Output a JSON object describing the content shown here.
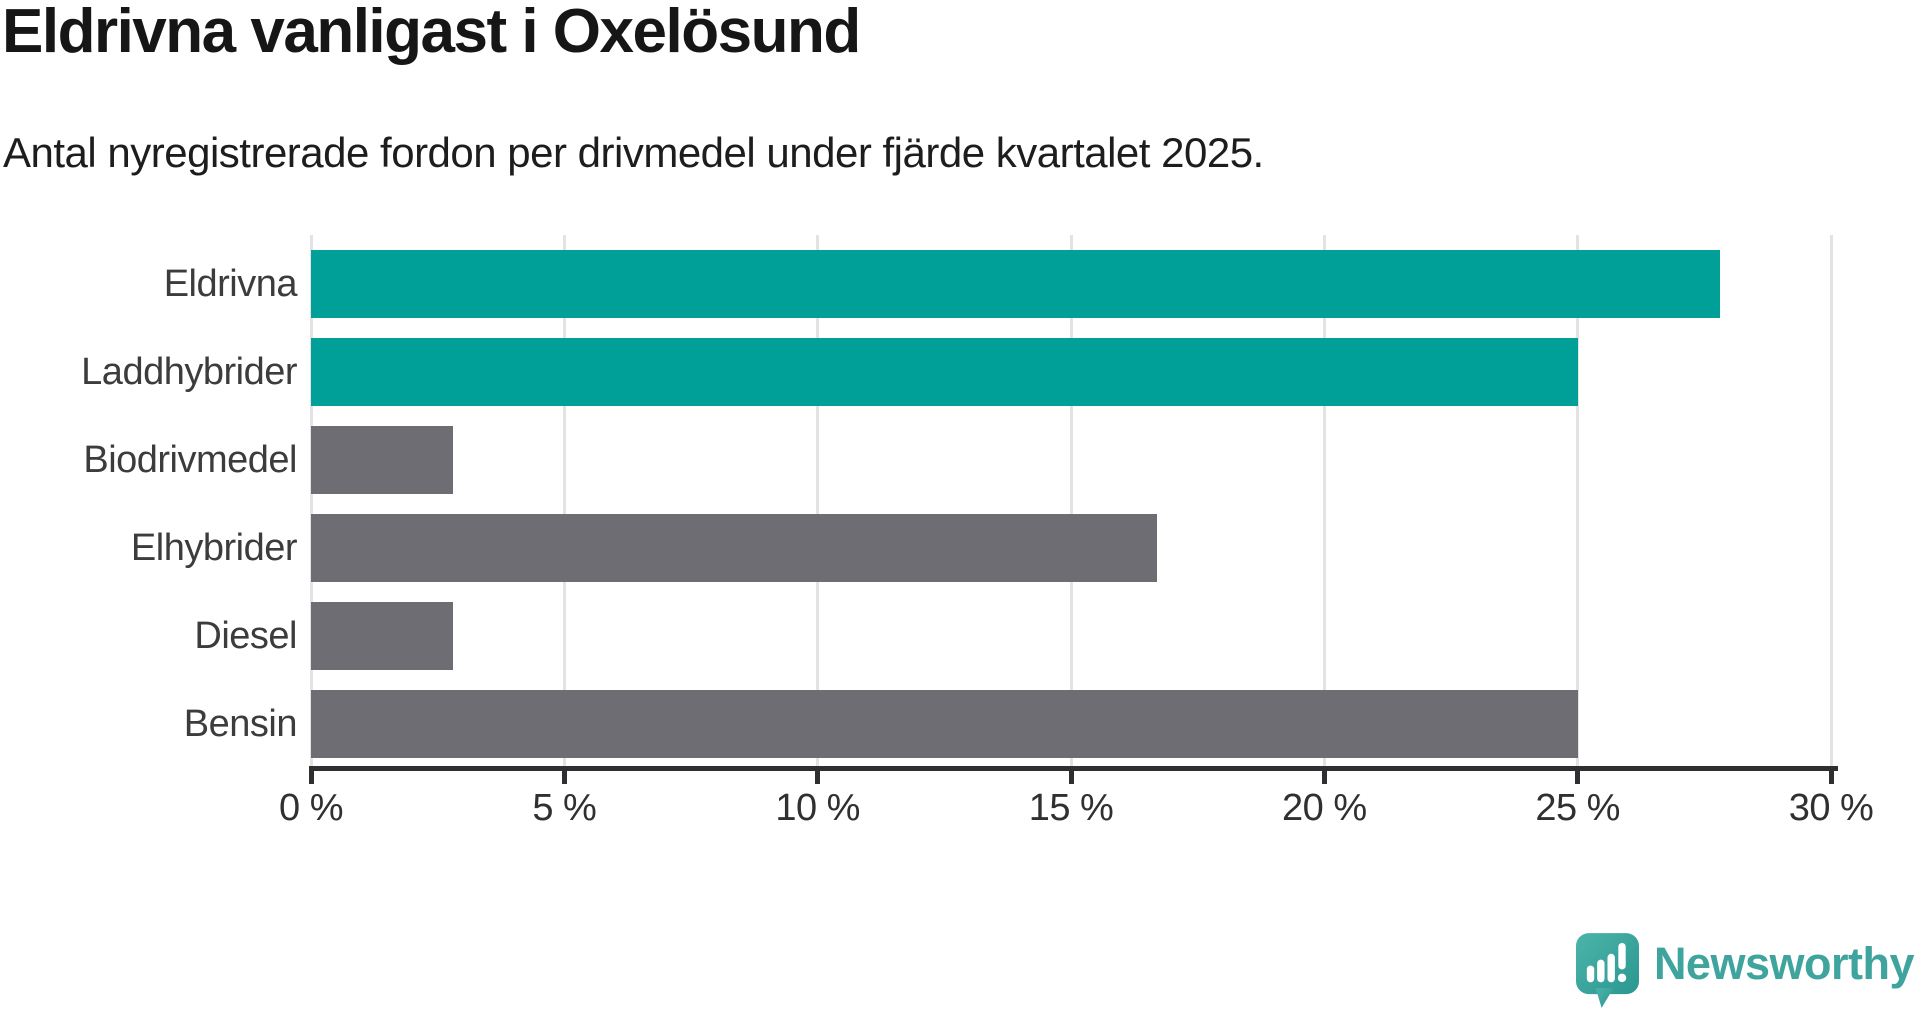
{
  "chart_data": {
    "type": "bar",
    "orientation": "horizontal",
    "title": "Eldrivna vanligast i Oxelösund",
    "subtitle": "Antal nyregistrerade fordon per drivmedel under fjärde kvartalet 2025.",
    "categories": [
      "Eldrivna",
      "Laddhybrider",
      "Biodrivmedel",
      "Elhybrider",
      "Diesel",
      "Bensin"
    ],
    "values": [
      27.8,
      25.0,
      2.8,
      16.7,
      2.8,
      25.0
    ],
    "unit": "%",
    "bar_colors": [
      "#00A099",
      "#00A099",
      "#6D6D73",
      "#6D6D73",
      "#6D6D73",
      "#6D6D73"
    ],
    "x_tick_values": [
      0,
      5,
      10,
      15,
      20,
      25,
      30
    ],
    "x_tick_labels": [
      "0 %",
      "5 %",
      "10 %",
      "15 %",
      "20 %",
      "25 %",
      "30 %"
    ],
    "xlim": [
      0,
      31
    ],
    "grid": true,
    "legend": "none",
    "colors": {
      "highlight": "#00A099",
      "default": "#6D6D73",
      "gridline": "#E3E3E3",
      "axis": "#2F2F32"
    }
  },
  "footer": {
    "logo_text": "Newsworthy",
    "logo_icon": "newsworthy-speech-bubble-chart-icon",
    "logo_color": "#3EA49D"
  }
}
